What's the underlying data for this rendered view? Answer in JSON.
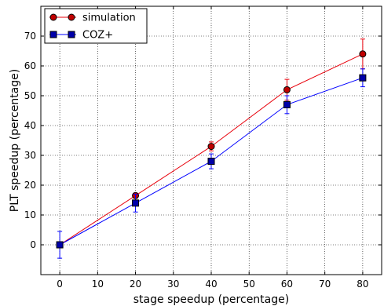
{
  "chart_data": {
    "type": "line",
    "title": "",
    "xlabel": "stage speedup (percentage)",
    "ylabel": "PLT speedup (percentage)",
    "xlim": [
      -5,
      85
    ],
    "ylim": [
      -10,
      80
    ],
    "xticks": [
      0,
      10,
      20,
      30,
      40,
      50,
      60,
      70,
      80
    ],
    "yticks": [
      0,
      10,
      20,
      30,
      40,
      50,
      60,
      70
    ],
    "grid": true,
    "legend_position": "top-left",
    "series": [
      {
        "name": "simulation",
        "color": "#e8000b",
        "marker_fill": "#c00000",
        "marker": "circle",
        "x": [
          0,
          20,
          40,
          60,
          80
        ],
        "y": [
          0,
          16.5,
          33,
          52,
          64
        ],
        "err": [
          0,
          0.8,
          1.5,
          3.5,
          5
        ]
      },
      {
        "name": "COZ+",
        "color": "#0000ff",
        "marker_fill": "#0000aa",
        "marker": "square",
        "x": [
          0,
          20,
          40,
          60,
          80
        ],
        "y": [
          0,
          14,
          28,
          47,
          56
        ],
        "err": [
          4.5,
          3,
          2.5,
          3,
          3
        ]
      }
    ]
  }
}
